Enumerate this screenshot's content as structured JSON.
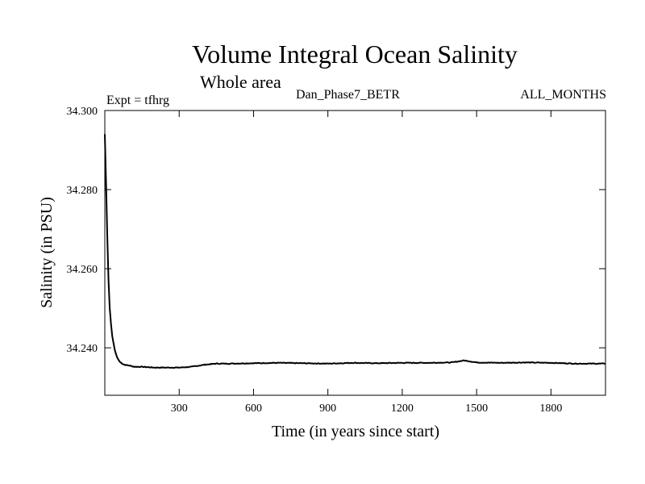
{
  "chart_data": {
    "type": "line",
    "title": "Volume Integral Ocean Salinity",
    "subtitle": "Whole area",
    "experiment_label": "Expt = tfhrg",
    "run_label": "Dan_Phase7_BETR",
    "period_label": "ALL_MONTHS",
    "xlabel": "Time (in years since start)",
    "ylabel": "Salinity (in PSU)",
    "xlim": [
      0,
      2020
    ],
    "ylim": [
      34.228,
      34.3
    ],
    "xticks": [
      300,
      600,
      900,
      1200,
      1500,
      1800
    ],
    "xtick_labels": [
      "300",
      "600",
      "900",
      "1200",
      "1500",
      "1800"
    ],
    "yticks": [
      34.3,
      34.28,
      34.26,
      34.24
    ],
    "ytick_labels": [
      "34.300",
      "34.280",
      "34.260",
      "34.240"
    ],
    "grid": false,
    "series": [
      {
        "name": "salinity",
        "color": "#000000",
        "x": [
          0,
          5,
          10,
          15,
          20,
          25,
          30,
          40,
          50,
          60,
          70,
          80,
          100,
          120,
          150,
          200,
          250,
          300,
          350,
          400,
          450,
          500,
          600,
          700,
          800,
          900,
          1000,
          1100,
          1200,
          1300,
          1400,
          1450,
          1500,
          1600,
          1700,
          1800,
          1900,
          2020
        ],
        "y": [
          34.294,
          34.282,
          34.268,
          34.257,
          34.25,
          34.246,
          34.243,
          34.2395,
          34.2375,
          34.2365,
          34.236,
          34.2357,
          34.2355,
          34.2352,
          34.2352,
          34.235,
          34.235,
          34.235,
          34.2352,
          34.2357,
          34.236,
          34.236,
          34.2361,
          34.2362,
          34.2361,
          34.236,
          34.2362,
          34.2361,
          34.2362,
          34.2362,
          34.2363,
          34.2368,
          34.2363,
          34.2362,
          34.2363,
          34.2362,
          34.236,
          34.236
        ]
      }
    ]
  }
}
